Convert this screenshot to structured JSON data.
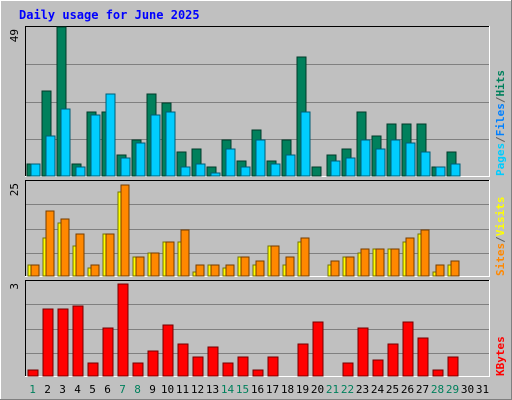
{
  "chart_data": [
    {
      "type": "bar",
      "title": "Daily usage for June 2025",
      "categories": [
        "1",
        "2",
        "3",
        "4",
        "5",
        "6",
        "7",
        "8",
        "9",
        "10",
        "11",
        "12",
        "13",
        "14",
        "15",
        "16",
        "17",
        "18",
        "19",
        "20",
        "21",
        "22",
        "23",
        "24",
        "25",
        "26",
        "27",
        "28",
        "29",
        "30",
        "31"
      ],
      "weekend_days": [
        "1",
        "7",
        "8",
        "14",
        "15",
        "21",
        "22",
        "28",
        "29"
      ],
      "ylim": [
        0,
        49
      ],
      "ylabel_parts": [
        "Pages",
        "/",
        "Files",
        "/",
        "Hits"
      ],
      "ymax_label": "49",
      "series": [
        {
          "name": "Hits",
          "color": "#00805c",
          "values": [
            4,
            28,
            49,
            4,
            21,
            21,
            7,
            12,
            27,
            24,
            8,
            9,
            3,
            12,
            5,
            15,
            5,
            12,
            39,
            3,
            7,
            9,
            21,
            13,
            17,
            17,
            17,
            3,
            8,
            0,
            0
          ]
        },
        {
          "name": "Files",
          "color": "#00ccff",
          "values": [
            4,
            13,
            22,
            3,
            20,
            27,
            6,
            11,
            20,
            21,
            3,
            4,
            1,
            9,
            3,
            12,
            4,
            7,
            21,
            0,
            5,
            6,
            12,
            9,
            12,
            11,
            8,
            3,
            4,
            0,
            0
          ]
        },
        {
          "name": "Pages",
          "color": "#00ccff",
          "values": [
            0,
            0,
            0,
            0,
            0,
            0,
            0,
            0,
            0,
            0,
            0,
            0,
            0,
            0,
            0,
            0,
            0,
            0,
            0,
            0,
            0,
            0,
            0,
            0,
            0,
            0,
            0,
            0,
            0,
            0,
            0
          ]
        }
      ]
    },
    {
      "type": "bar",
      "categories": [
        "1",
        "2",
        "3",
        "4",
        "5",
        "6",
        "7",
        "8",
        "9",
        "10",
        "11",
        "12",
        "13",
        "14",
        "15",
        "16",
        "17",
        "18",
        "19",
        "20",
        "21",
        "22",
        "23",
        "24",
        "25",
        "26",
        "27",
        "28",
        "29",
        "30",
        "31"
      ],
      "ylim": [
        0,
        25
      ],
      "ylabel_parts": [
        "Sites",
        "/",
        "Visits"
      ],
      "ymax_label": "25",
      "series": [
        {
          "name": "Visits",
          "color": "#ffff00",
          "values": [
            3,
            10,
            14,
            8,
            2,
            11,
            22,
            5,
            6,
            9,
            9,
            1,
            3,
            2,
            5,
            3,
            8,
            3,
            9,
            0,
            3,
            5,
            6,
            7,
            7,
            9,
            11,
            1,
            3,
            0,
            0
          ]
        },
        {
          "name": "Sites",
          "color": "#ff8800",
          "values": [
            3,
            17,
            15,
            11,
            3,
            11,
            24,
            5,
            6,
            9,
            12,
            3,
            3,
            3,
            5,
            4,
            8,
            5,
            10,
            0,
            4,
            5,
            7,
            7,
            7,
            10,
            12,
            3,
            4,
            0,
            0
          ]
        }
      ]
    },
    {
      "type": "bar",
      "categories": [
        "1",
        "2",
        "3",
        "4",
        "5",
        "6",
        "7",
        "8",
        "9",
        "10",
        "11",
        "12",
        "13",
        "14",
        "15",
        "16",
        "17",
        "18",
        "19",
        "20",
        "21",
        "22",
        "23",
        "24",
        "25",
        "26",
        "27",
        "28",
        "29",
        "30",
        "31"
      ],
      "ylim": [
        0,
        3
      ],
      "ylabel_parts": [
        "KBytes"
      ],
      "ymax_label": "3",
      "series": [
        {
          "name": "KBytes",
          "color": "#ff0000",
          "values": [
            0.2,
            2.1,
            2.1,
            2.2,
            0.4,
            1.5,
            2.9,
            0.4,
            0.8,
            1.6,
            1.0,
            0.6,
            0.9,
            0.4,
            0.6,
            0.2,
            0.6,
            0,
            1.0,
            1.7,
            0,
            0.4,
            1.5,
            0.5,
            1.0,
            1.7,
            1.2,
            0.2,
            0.6,
            0,
            0
          ]
        }
      ]
    }
  ],
  "colors": {
    "background": "#c0c0c0",
    "title": "#0000ff",
    "gridline": "#808080",
    "weekend_label": "#00805c",
    "weekday_label": "#000000"
  }
}
